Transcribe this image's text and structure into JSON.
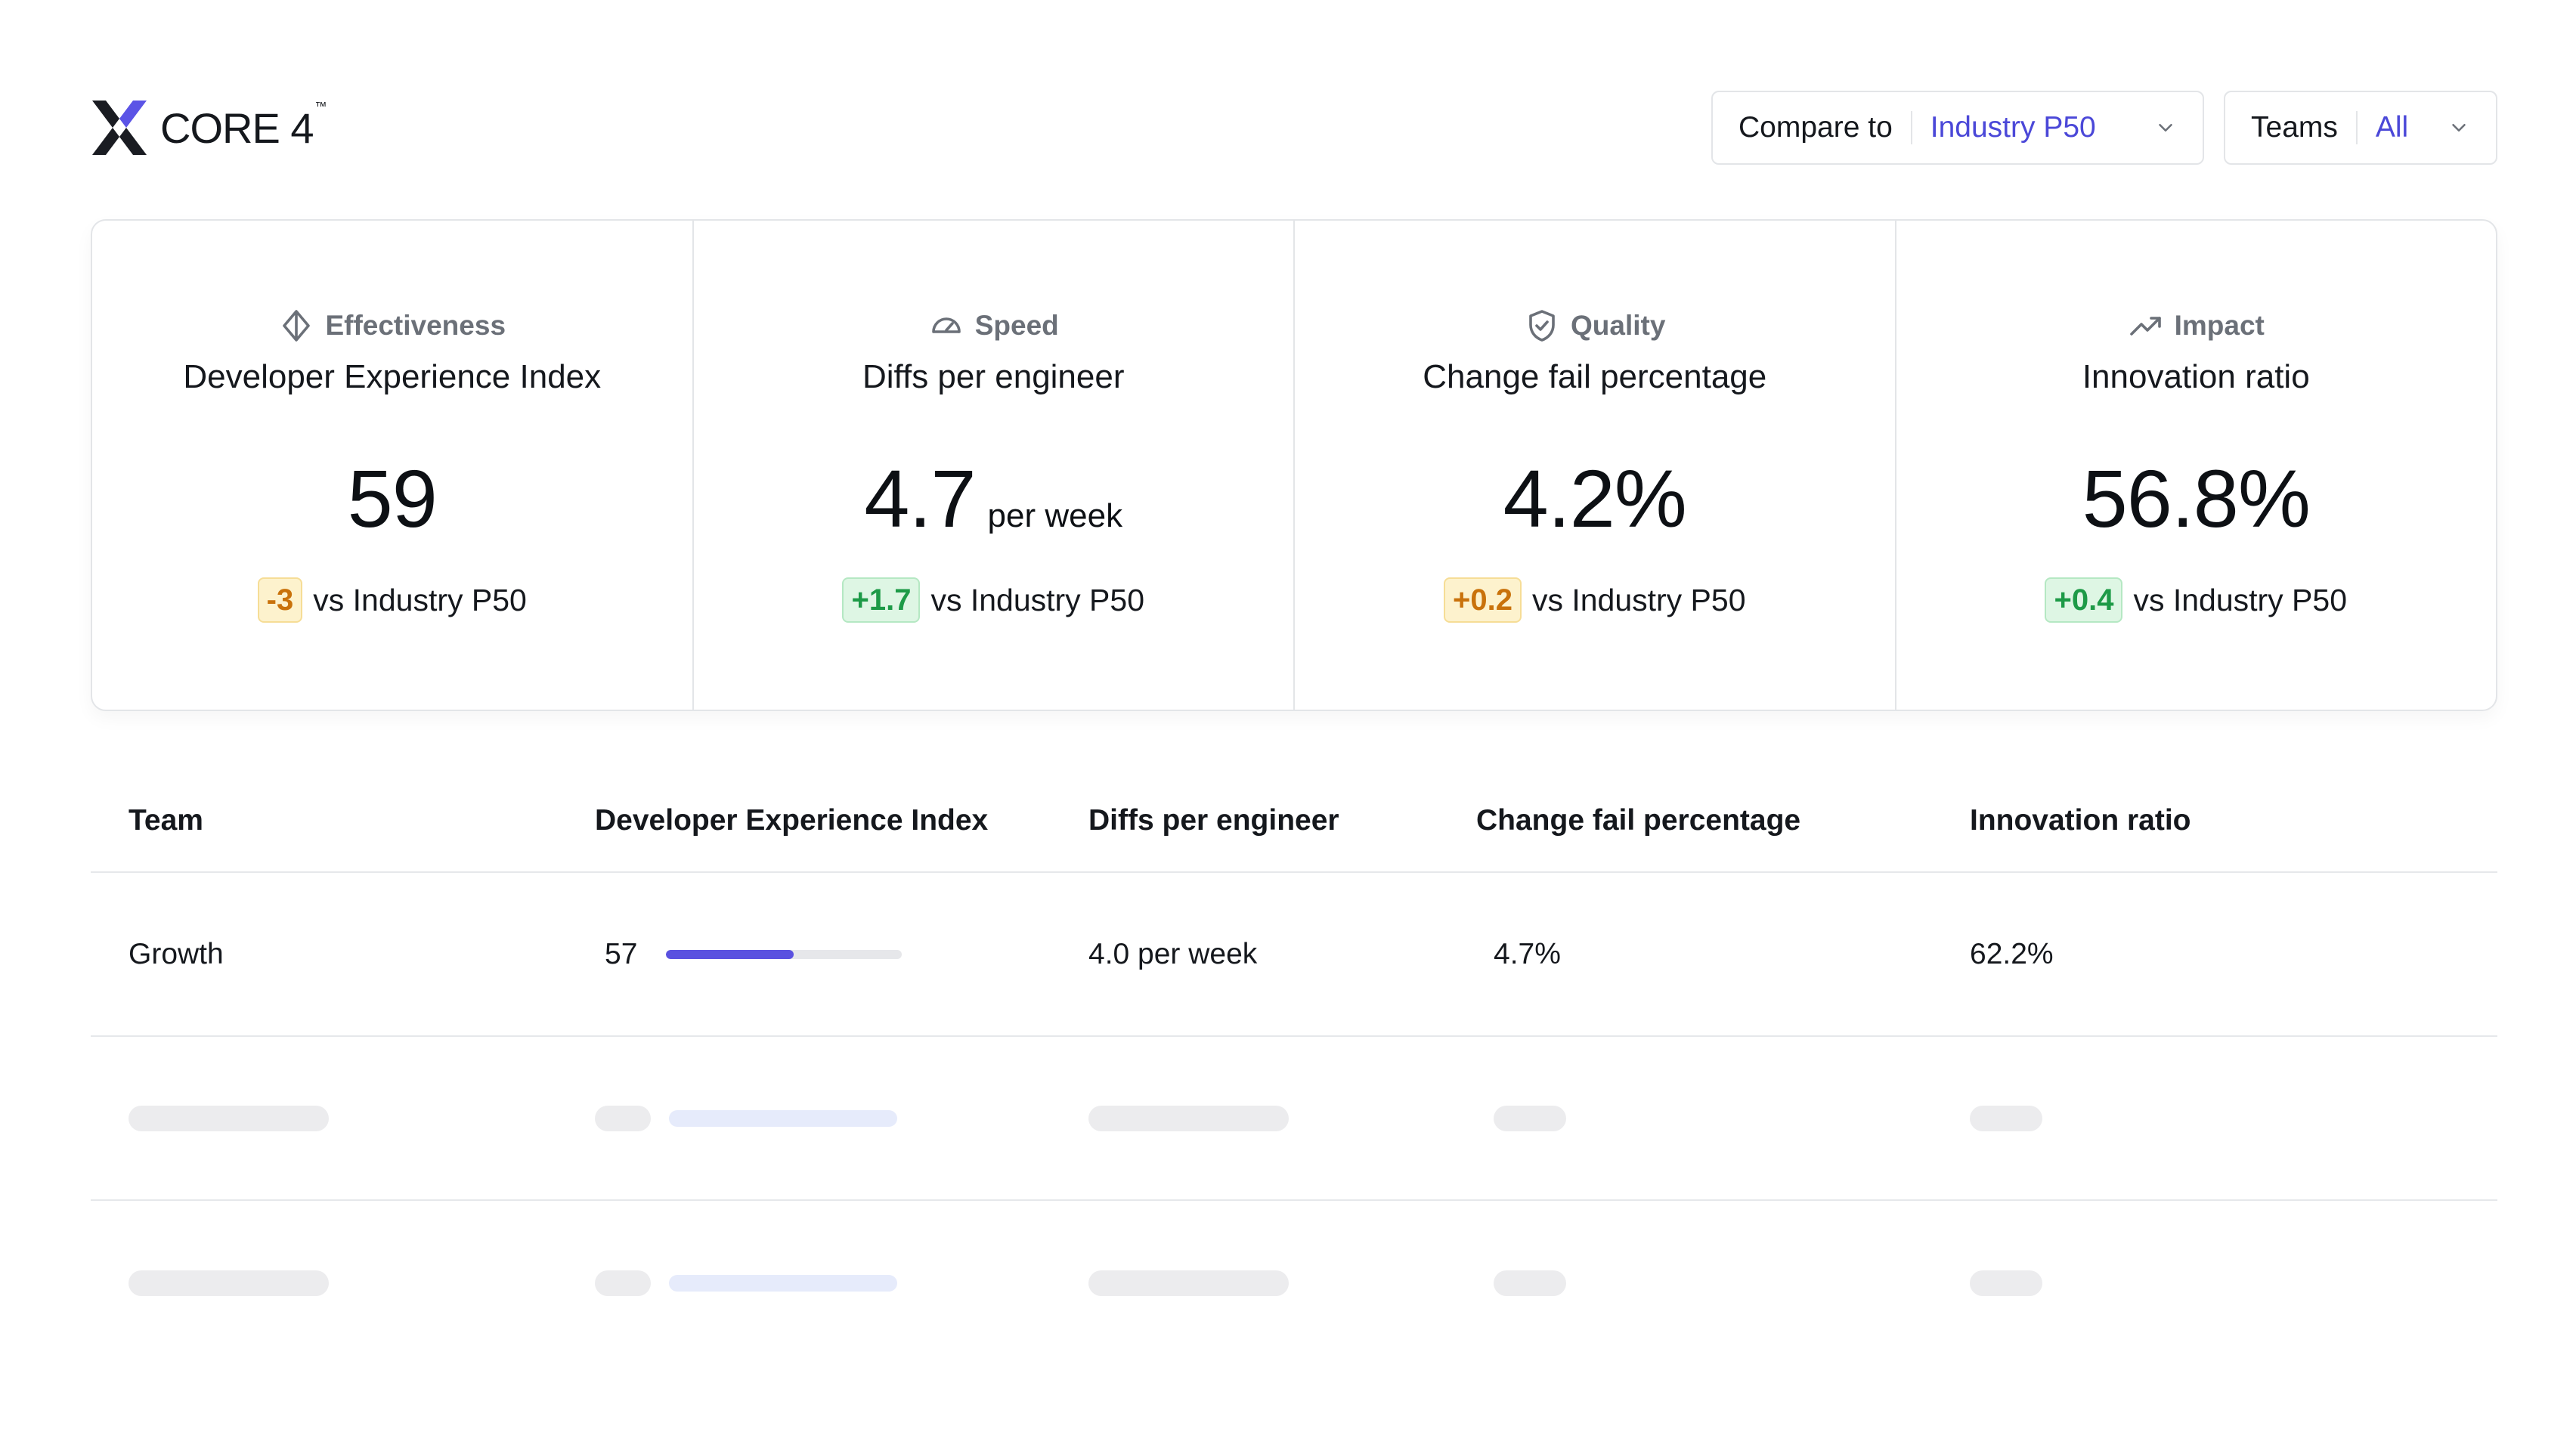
{
  "brand": {
    "name": "CORE 4",
    "tm": "™"
  },
  "filters": {
    "compare": {
      "label": "Compare to",
      "value": "Industry P50"
    },
    "teams": {
      "label": "Teams",
      "value": "All"
    }
  },
  "metrics": [
    {
      "category": "Effectiveness",
      "icon": "diamond-icon",
      "title": "Developer Experience Index",
      "value": "59",
      "unit": "",
      "delta": "-3",
      "delta_status": "warning",
      "comparison": "vs Industry P50"
    },
    {
      "category": "Speed",
      "icon": "speedometer-icon",
      "title": "Diffs per engineer",
      "value": "4.7",
      "unit": "per week",
      "delta": "+1.7",
      "delta_status": "positive",
      "comparison": "vs Industry P50"
    },
    {
      "category": "Quality",
      "icon": "shield-check-icon",
      "title": "Change fail percentage",
      "value": "4.2%",
      "unit": "",
      "delta": "+0.2",
      "delta_status": "warning",
      "comparison": "vs Industry P50"
    },
    {
      "category": "Impact",
      "icon": "trending-up-icon",
      "title": "Innovation ratio",
      "value": "56.8%",
      "unit": "",
      "delta": "+0.4",
      "delta_status": "positive",
      "comparison": "vs Industry P50"
    }
  ],
  "table": {
    "headers": [
      "Team",
      "Developer Experience Index",
      "Diffs per engineer",
      "Change fail percentage",
      "Innovation ratio"
    ],
    "rows": [
      {
        "team": "Growth",
        "dxi": "57",
        "dxi_fraction": 0.54,
        "diffs": "4.0 per week",
        "cfp": "4.7%",
        "innovation": "62.2%"
      }
    ],
    "loading_rows": 2
  },
  "colors": {
    "accent": "#4b48d8",
    "bar": "#5a51e0",
    "warning_text": "#c9720b",
    "warning_bg": "#fdf2cd",
    "positive_text": "#1d9a47",
    "positive_bg": "#def6e4"
  }
}
